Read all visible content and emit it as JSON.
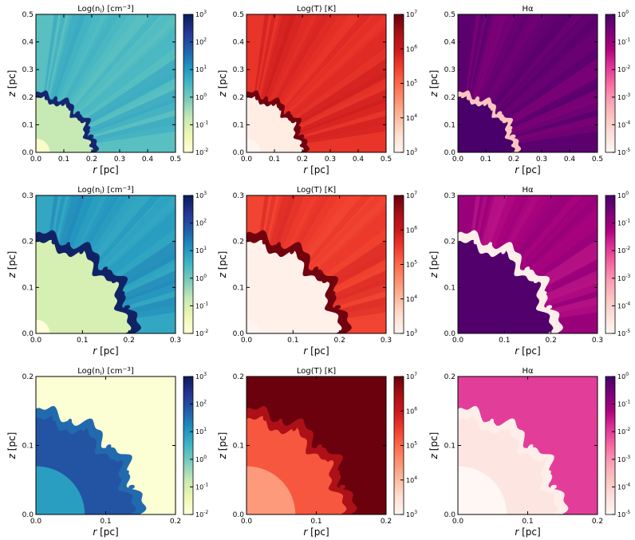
{
  "figure": {
    "colors": {
      "ygnbu": [
        "#ffffd9",
        "#edf8b1",
        "#c7e9b4",
        "#7fcdbb",
        "#41b6c4",
        "#1d91c0",
        "#225ea8",
        "#253494",
        "#081d58"
      ],
      "reds": [
        "#fff5f0",
        "#fee0d2",
        "#fcbba1",
        "#fc9272",
        "#fb6a4a",
        "#ef3b2c",
        "#cb181d",
        "#a50f15",
        "#67000d"
      ],
      "rdpu": [
        "#fff7f3",
        "#fde0dd",
        "#fcc5c0",
        "#fa9fb5",
        "#f768a1",
        "#dd3497",
        "#ae017e",
        "#7a0177",
        "#49006a"
      ]
    }
  },
  "chart_data": [
    {
      "type": "heatmap",
      "row": 0,
      "col": 0,
      "title": "Log(n",
      "title_sub": "i",
      "title_tail": ") [cm",
      "title_sup": "−3",
      "title_end": "]",
      "xlabel": "r",
      "xunit": " [pc]",
      "ylabel": "z",
      "yunit": " [pc]",
      "xlim": [
        0,
        0.5
      ],
      "ylim": [
        0,
        0.5
      ],
      "xticks": [
        "0.0",
        "0.1",
        "0.2",
        "0.3",
        "0.4",
        "0.5"
      ],
      "yticks": [
        "0.0",
        "0.1",
        "0.2",
        "0.3",
        "0.4",
        "0.5"
      ],
      "colormap": "ygnbu",
      "colorbar": {
        "base": "10",
        "exponents": [
          "-2",
          "-1",
          "0",
          "1",
          "2",
          "3"
        ],
        "range": [
          -2,
          3
        ]
      },
      "front_radius": 0.2,
      "interior_level": 0.25,
      "exterior_level": 0.45,
      "shell_level": 0.95,
      "core_radius": 0.05,
      "rays": true
    },
    {
      "type": "heatmap",
      "row": 0,
      "col": 1,
      "title": "Log(T) [K]",
      "xlabel": "r",
      "xunit": " [pc]",
      "ylabel": "z",
      "yunit": " [pc]",
      "xlim": [
        0,
        0.5
      ],
      "ylim": [
        0,
        0.5
      ],
      "xticks": [
        "0.0",
        "0.1",
        "0.2",
        "0.3",
        "0.4",
        "0.5"
      ],
      "yticks": [
        "0.0",
        "0.1",
        "0.2",
        "0.3",
        "0.4",
        "0.5"
      ],
      "colormap": "reds",
      "colorbar": {
        "base": "10",
        "exponents": [
          "3",
          "4",
          "5",
          "6",
          "7"
        ],
        "range": [
          3,
          7
        ]
      },
      "front_radius": 0.2,
      "interior_level": 0.05,
      "exterior_level": 0.65,
      "shell_level": 0.98,
      "core_radius": 0.05,
      "rays": true
    },
    {
      "type": "heatmap",
      "row": 0,
      "col": 2,
      "title": "Hα",
      "xlabel": "r",
      "xunit": " [pc]",
      "ylabel": "z",
      "yunit": " [pc]",
      "xlim": [
        0,
        0.5
      ],
      "ylim": [
        0,
        0.5
      ],
      "xticks": [
        "0.0",
        "0.1",
        "0.2",
        "0.3",
        "0.4",
        "0.5"
      ],
      "yticks": [
        "0.0",
        "0.1",
        "0.2",
        "0.3",
        "0.4",
        "0.5"
      ],
      "colormap": "rdpu",
      "colorbar": {
        "base": "10",
        "exponents": [
          "-5",
          "-4",
          "-3",
          "-2",
          "-1",
          "0"
        ],
        "range": [
          -5,
          0
        ]
      },
      "front_radius": 0.2,
      "interior_level": 1.0,
      "exterior_level": 0.95,
      "shell_level": 0.25,
      "core_radius": 0.0,
      "rays": true
    },
    {
      "type": "heatmap",
      "row": 1,
      "col": 0,
      "title": "Log(n",
      "title_sub": "i",
      "title_tail": ") [cm",
      "title_sup": "−3",
      "title_end": "]",
      "xlabel": "r",
      "xunit": " [pc]",
      "ylabel": "z",
      "yunit": " [pc]",
      "xlim": [
        0,
        0.3
      ],
      "ylim": [
        0,
        0.3
      ],
      "xticks": [
        "0.0",
        "0.1",
        "0.2",
        "0.3"
      ],
      "yticks": [
        "0.0",
        "0.1",
        "0.2",
        "0.3"
      ],
      "colormap": "ygnbu",
      "colorbar": {
        "base": "10",
        "exponents": [
          "-2",
          "-1",
          "0",
          "1",
          "2",
          "3"
        ],
        "range": [
          -2,
          3
        ]
      },
      "front_radius": 0.2,
      "interior_level": 0.2,
      "exterior_level": 0.55,
      "shell_level": 0.97,
      "core_radius": 0.03,
      "rays": true
    },
    {
      "type": "heatmap",
      "row": 1,
      "col": 1,
      "title": "Log(T) [K]",
      "xlabel": "r",
      "xunit": " [pc]",
      "ylabel": "z",
      "yunit": " [pc]",
      "xlim": [
        0,
        0.3
      ],
      "ylim": [
        0,
        0.3
      ],
      "xticks": [
        "0.0",
        "0.1",
        "0.2",
        "0.3"
      ],
      "yticks": [
        "0.0",
        "0.1",
        "0.2",
        "0.3"
      ],
      "colormap": "reds",
      "colorbar": {
        "base": "10",
        "exponents": [
          "3",
          "4",
          "5",
          "6",
          "7"
        ],
        "range": [
          3,
          7
        ]
      },
      "front_radius": 0.2,
      "interior_level": 0.03,
      "exterior_level": 0.6,
      "shell_level": 0.98,
      "core_radius": 0.03,
      "rays": true
    },
    {
      "type": "heatmap",
      "row": 1,
      "col": 2,
      "title": "Hα",
      "xlabel": "r",
      "xunit": " [pc]",
      "ylabel": "z",
      "yunit": " [pc]",
      "xlim": [
        0,
        0.3
      ],
      "ylim": [
        0,
        0.3
      ],
      "xticks": [
        "0.0",
        "0.1",
        "0.2",
        "0.3"
      ],
      "yticks": [
        "0.0",
        "0.1",
        "0.2",
        "0.3"
      ],
      "colormap": "rdpu",
      "colorbar": {
        "base": "10",
        "exponents": [
          "-5",
          "-4",
          "-3",
          "-2",
          "-1",
          "0"
        ],
        "range": [
          -5,
          0
        ]
      },
      "front_radius": 0.2,
      "interior_level": 0.98,
      "exterior_level": 0.8,
      "shell_level": 0.05,
      "core_radius": 0.0,
      "rays": true
    },
    {
      "type": "heatmap",
      "row": 2,
      "col": 0,
      "title": "Log(n",
      "title_sub": "i",
      "title_tail": ") [cm",
      "title_sup": "−3",
      "title_end": "]",
      "xlabel": "r",
      "xunit": " [pc]",
      "ylabel": "z",
      "yunit": " [pc]",
      "xlim": [
        0,
        0.2
      ],
      "ylim": [
        0,
        0.2
      ],
      "xticks": [
        "0.0",
        "0.1",
        "0.2"
      ],
      "yticks": [
        "0.0",
        "0.1",
        "0.2"
      ],
      "colormap": "ygnbu",
      "colorbar": {
        "base": "10",
        "exponents": [
          "-2",
          "-1",
          "0",
          "1",
          "2",
          "3"
        ],
        "range": [
          -2,
          3
        ]
      },
      "front_radius": 0.14,
      "interior_level": 0.78,
      "exterior_level": 0.02,
      "shell_level": 0.72,
      "core_radius": 0.07,
      "rays": false
    },
    {
      "type": "heatmap",
      "row": 2,
      "col": 1,
      "title": "Log(T) [K]",
      "xlabel": "r",
      "xunit": " [pc]",
      "ylabel": "z",
      "yunit": " [pc]",
      "xlim": [
        0,
        0.2
      ],
      "ylim": [
        0,
        0.2
      ],
      "xticks": [
        "0.0",
        "0.1",
        "0.2"
      ],
      "yticks": [
        "0.0",
        "0.1",
        "0.2"
      ],
      "colormap": "reds",
      "colorbar": {
        "base": "10",
        "exponents": [
          "3",
          "4",
          "5",
          "6",
          "7"
        ],
        "range": [
          3,
          7
        ]
      },
      "front_radius": 0.14,
      "interior_level": 0.55,
      "exterior_level": 0.99,
      "shell_level": 0.85,
      "core_radius": 0.07,
      "rays": false
    },
    {
      "type": "heatmap",
      "row": 2,
      "col": 2,
      "title": "Hα",
      "xlabel": "r",
      "xunit": " [pc]",
      "ylabel": "z",
      "yunit": " [pc]",
      "xlim": [
        0,
        0.2
      ],
      "ylim": [
        0,
        0.2
      ],
      "xticks": [
        "0.0",
        "0.1",
        "0.2"
      ],
      "yticks": [
        "0.0",
        "0.1",
        "0.2"
      ],
      "colormap": "rdpu",
      "colorbar": {
        "base": "10",
        "exponents": [
          "-5",
          "-4",
          "-3",
          "-2",
          "-1",
          "0"
        ],
        "range": [
          -5,
          0
        ]
      },
      "front_radius": 0.14,
      "interior_level": 0.1,
      "exterior_level": 0.6,
      "shell_level": 0.05,
      "core_radius": 0.07,
      "rays": false
    }
  ]
}
